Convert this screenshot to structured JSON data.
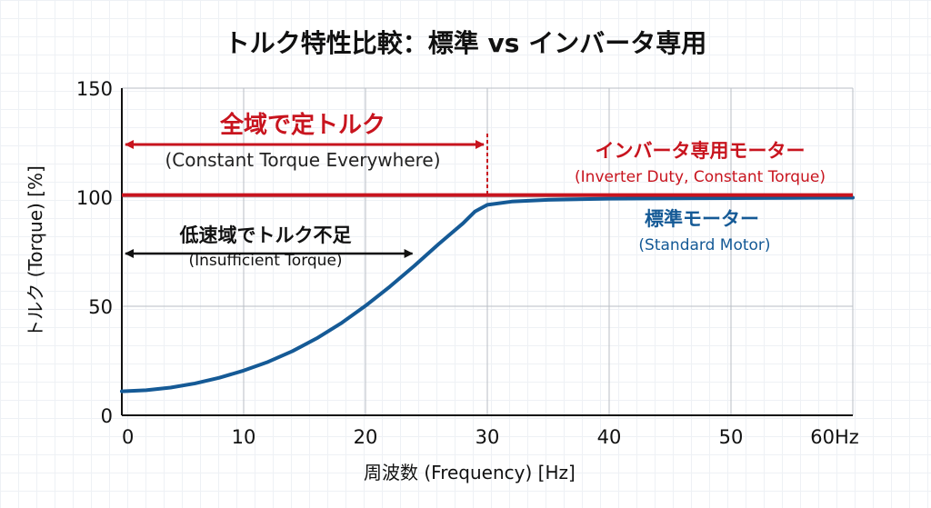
{
  "chart_data": {
    "type": "line",
    "title": "トルク特性比較：標準 vs インバータ専用",
    "xlabel": "周波数 (Frequency) [Hz]",
    "ylabel": "トルク (Torque) [%]",
    "xlim": [
      0,
      60
    ],
    "ylim": [
      0,
      150
    ],
    "x_ticks": [
      "0",
      "10",
      "20",
      "30",
      "40",
      "50",
      "60Hz"
    ],
    "y_ticks": [
      "0",
      "50",
      "100",
      "150"
    ],
    "grid": true,
    "series": [
      {
        "name": "インバータ専用モーター",
        "subtitle": "(Inverter Duty, Constant Torque)",
        "color": "#c8141e",
        "x": [
          0,
          60
        ],
        "y": [
          101,
          101
        ]
      },
      {
        "name": "標準モーター",
        "subtitle": "(Standard Motor)",
        "color": "#155a96",
        "x": [
          0,
          2,
          4,
          6,
          8,
          10,
          12,
          14,
          16,
          18,
          20,
          22,
          24,
          26,
          28,
          29,
          30,
          32,
          35,
          40,
          45,
          50,
          55,
          60
        ],
        "y": [
          11,
          11.5,
          12.7,
          14.6,
          17.2,
          20.5,
          24.5,
          29.4,
          35.3,
          42.2,
          50.2,
          59,
          68.5,
          78.5,
          88,
          93.5,
          96.5,
          98,
          98.8,
          99.3,
          99.5,
          99.6,
          99.7,
          99.8
        ]
      }
    ],
    "annotations": [
      {
        "text": "全域で定トルク",
        "subtext": "(Constant Torque Everywhere)",
        "color": "#c8141e",
        "x_range": [
          0,
          30
        ]
      },
      {
        "text": "低速域でトルク不足",
        "subtext": "(Insufficient Torque)",
        "color": "#111111",
        "x_range": [
          0,
          24
        ]
      }
    ]
  }
}
